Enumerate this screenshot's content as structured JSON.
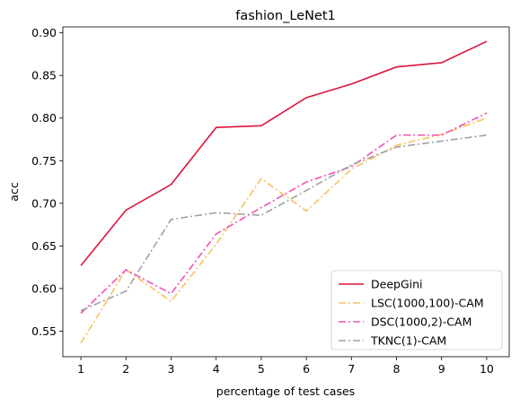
{
  "chart_data": {
    "type": "line",
    "title": "fashion_LeNet1",
    "xlabel": "percentage of test cases",
    "ylabel": "acc",
    "x": [
      1,
      2,
      3,
      4,
      5,
      6,
      7,
      8,
      9,
      10
    ],
    "xlim": [
      0.6,
      10.5
    ],
    "ylim": [
      0.52,
      0.907
    ],
    "yticks": [
      0.55,
      0.6,
      0.65,
      0.7,
      0.75,
      0.8,
      0.85,
      0.9
    ],
    "ytick_labels": [
      "0.55",
      "0.60",
      "0.65",
      "0.70",
      "0.75",
      "0.80",
      "0.85",
      "0.90"
    ],
    "xtick_labels": [
      "1",
      "2",
      "3",
      "4",
      "5",
      "6",
      "7",
      "8",
      "9",
      "10"
    ],
    "grid": false,
    "legend_position": "bottom-right",
    "series": [
      {
        "name": "DeepGini",
        "color": "#dc143c",
        "dash": "solid",
        "values": [
          0.627,
          0.692,
          0.722,
          0.789,
          0.791,
          0.824,
          0.84,
          0.86,
          0.865,
          0.89
        ]
      },
      {
        "name": "LSC(1000,100)-CAM",
        "color": "#fbc15e",
        "dash": "dashdot",
        "values": [
          0.536,
          0.622,
          0.585,
          0.652,
          0.729,
          0.691,
          0.74,
          0.768,
          0.781,
          0.8
        ]
      },
      {
        "name": "DSC(1000,2)-CAM",
        "color": "#f050b4",
        "dash": "dashdot",
        "values": [
          0.571,
          0.622,
          0.594,
          0.664,
          0.695,
          0.725,
          0.743,
          0.78,
          0.78,
          0.806
        ]
      },
      {
        "name": "TKNC(1)-CAM",
        "color": "#a0a0a0",
        "dash": "dashdot",
        "values": [
          0.574,
          0.597,
          0.681,
          0.689,
          0.686,
          0.715,
          0.745,
          0.766,
          0.773,
          0.78
        ]
      }
    ]
  }
}
